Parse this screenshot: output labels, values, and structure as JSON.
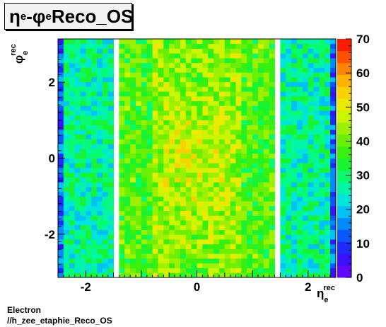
{
  "title": {
    "main": "η",
    "sub1": "e",
    "sep": "-φ",
    "sub2": "e",
    "suffix": " Reco_OS"
  },
  "footer": {
    "line1": "Electron",
    "line2": "//h_zee_etaphie_Reco_OS"
  },
  "chart_data": {
    "type": "heatmap",
    "xlabel": {
      "base": "η",
      "sub": "e",
      "sup": "rec"
    },
    "ylabel": {
      "base": "φ",
      "sub": "e",
      "sup": "rec"
    },
    "xlim": [
      -2.5,
      2.5
    ],
    "ylim": [
      -3.1416,
      3.1416
    ],
    "zlim": [
      0,
      70
    ],
    "x_ticks": [
      -2,
      0,
      2
    ],
    "y_ticks": [
      -2,
      0,
      2
    ],
    "z_ticks": [
      0,
      10,
      20,
      30,
      40,
      50,
      60,
      70
    ],
    "x_bins": 50,
    "y_bins": 50,
    "empty_x_ranges": [
      [
        -1.5,
        -1.4
      ],
      [
        1.4,
        1.5
      ]
    ],
    "description_of_values": "Counts roughly 10-20 at |eta|>2.3, 25-35 for 1.5<|eta|<2.3, 35-50 in the barrel |eta|<1.4, with peaks near 55-60 around eta≈0",
    "region_means": [
      {
        "eta_range": [
          -2.5,
          -2.4
        ],
        "mean": 12
      },
      {
        "eta_range": [
          -2.4,
          -1.5
        ],
        "mean": 27
      },
      {
        "eta_range": [
          -1.4,
          -0.8
        ],
        "mean": 38
      },
      {
        "eta_range": [
          -0.8,
          0.8
        ],
        "mean": 44
      },
      {
        "eta_range": [
          0.8,
          1.4
        ],
        "mean": 38
      },
      {
        "eta_range": [
          1.5,
          2.4
        ],
        "mean": 27
      },
      {
        "eta_range": [
          2.4,
          2.5
        ],
        "mean": 12
      }
    ],
    "grid": false,
    "colorbar": "right"
  }
}
